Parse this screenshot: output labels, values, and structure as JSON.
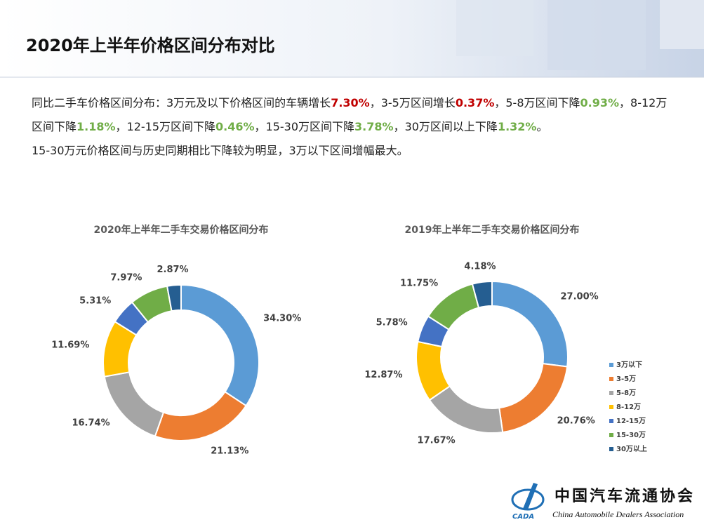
{
  "header": {
    "title": "2020年上半年价格区间分布对比"
  },
  "summary": {
    "paragraphs": [
      {
        "runs": [
          {
            "text": "同比二手车价格区间分布：3万元及以下价格区间的车辆增长"
          },
          {
            "text": "7.30%",
            "color": "#c00000"
          },
          {
            "text": "，3-5万区间增长"
          },
          {
            "text": "0.37%",
            "color": "#c00000"
          },
          {
            "text": "，5-8万区间下降"
          },
          {
            "text": "0.93%",
            "color": "#70ad47"
          },
          {
            "text": "，8-12万区间下降"
          },
          {
            "text": "1.18%",
            "color": "#70ad47"
          },
          {
            "text": "，12-15万区间下降"
          },
          {
            "text": "0.46%",
            "color": "#70ad47"
          },
          {
            "text": "，15-30万区间下降"
          },
          {
            "text": "3.78%",
            "color": "#70ad47"
          },
          {
            "text": "，30万区间以上下降"
          },
          {
            "text": "1.32%",
            "color": "#70ad47"
          },
          {
            "text": "。"
          }
        ]
      },
      {
        "runs": [
          {
            "text": "15-30万元价格区间与历史同期相比下降较为明显，3万以下区间增幅最大。"
          }
        ]
      }
    ]
  },
  "chart_data": [
    {
      "type": "donut",
      "title": "2020年上半年二手车交易价格区间分布",
      "categories": [
        "3万以下",
        "3-5万",
        "5-8万",
        "8-12万",
        "12-15万",
        "15-30万",
        "30万以上"
      ],
      "values": [
        34.3,
        21.13,
        16.74,
        11.69,
        5.31,
        7.97,
        2.87
      ],
      "value_labels": [
        "34.30%",
        "21.13%",
        "16.74%",
        "11.69%",
        "5.31%",
        "7.97%",
        "2.87%"
      ],
      "colors": [
        "#5b9bd5",
        "#ed7d31",
        "#a5a5a5",
        "#ffc000",
        "#4472c4",
        "#70ad47",
        "#255e91"
      ],
      "legend": false
    },
    {
      "type": "donut",
      "title": "2019年上半年二手车交易价格区间分布",
      "categories": [
        "3万以下",
        "3-5万",
        "5-8万",
        "8-12万",
        "12-15万",
        "15-30万",
        "30万以上"
      ],
      "values": [
        27.0,
        20.76,
        17.67,
        12.87,
        5.78,
        11.75,
        4.18
      ],
      "value_labels": [
        "27.00%",
        "20.76%",
        "17.67%",
        "12.87%",
        "5.78%",
        "11.75%",
        "4.18%"
      ],
      "colors": [
        "#5b9bd5",
        "#ed7d31",
        "#a5a5a5",
        "#ffc000",
        "#4472c4",
        "#70ad47",
        "#255e91"
      ],
      "legend": "right"
    }
  ],
  "footer": {
    "org_cn": "中国汽车流通协会",
    "org_en": "China Automobile Dealers Association",
    "logo": "CADA"
  }
}
